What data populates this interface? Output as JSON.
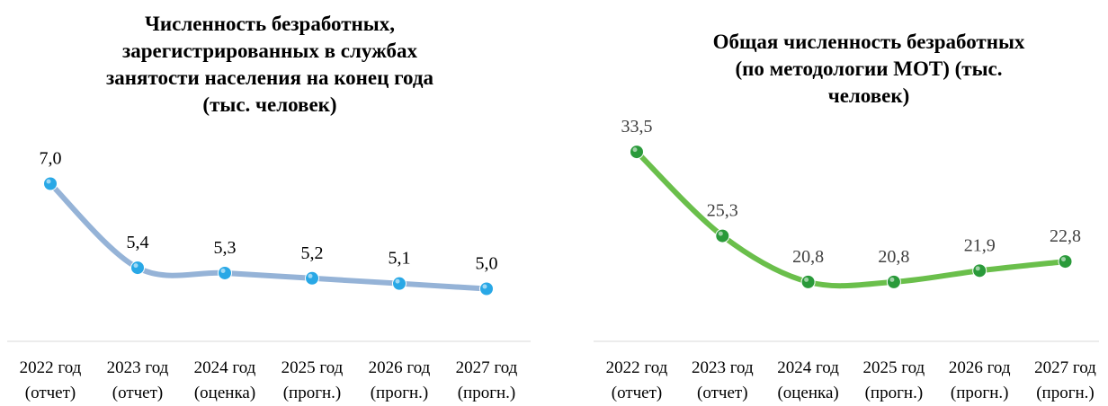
{
  "chart_data": [
    {
      "type": "line",
      "title": "Численность безработных,\nзарегистрированных в службах\nзанятости населения на конец года\n(тыс. человек)",
      "categories": [
        "2022 год\n(отчет)",
        "2023 год\n(отчет)",
        "2024 год\n(оценка)",
        "2025 год\n(прогн.)",
        "2026 год\n(прогн.)",
        "2027 год\n(прогн.)"
      ],
      "series": [
        {
          "name": "Численность безработных",
          "color": "#95b3d7",
          "marker_color": "#29a8e6",
          "values": [
            7.0,
            5.4,
            5.3,
            5.2,
            5.1,
            5.0
          ],
          "value_labels": [
            "7,0",
            "5,4",
            "5,3",
            "5,2",
            "5,1",
            "5,0"
          ]
        }
      ],
      "ylim": [
        4,
        8
      ]
    },
    {
      "type": "line",
      "title": "Общая численность безработных\n(по методологии МОТ) (тыс.\nчеловек)",
      "categories": [
        "2022 год\n(отчет)",
        "2023 год\n(отчет)",
        "2024 год\n(оценка)",
        "2025 год\n(прогн.)",
        "2026 год\n(прогн.)",
        "2027 год\n(прогн.)"
      ],
      "series": [
        {
          "name": "Общая численность безработных",
          "color": "#6abf4b",
          "marker_color": "#2a9a3a",
          "values": [
            33.5,
            25.3,
            20.8,
            20.8,
            21.9,
            22.8
          ],
          "value_labels": [
            "33,5",
            "25,3",
            "20,8",
            "20,8",
            "21,9",
            "22,8"
          ]
        }
      ],
      "ylim": [
        15,
        35
      ]
    }
  ]
}
